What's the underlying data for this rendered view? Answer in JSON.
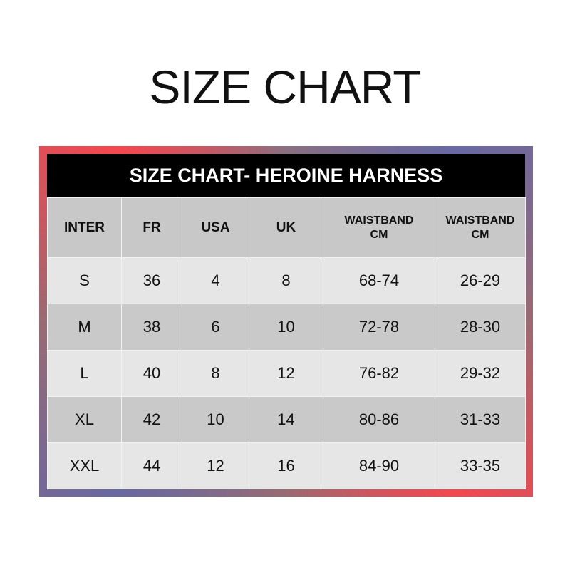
{
  "title": "SIZE CHART",
  "table": {
    "caption": "SIZE CHART- HEROINE HARNESS",
    "headers": [
      "INTER",
      "FR",
      "USA",
      "UK",
      "WAISTBAND CM",
      "WAISTBAND CM"
    ],
    "rows": [
      [
        "S",
        "36",
        "4",
        "8",
        "68-74",
        "26-29"
      ],
      [
        "M",
        "38",
        "6",
        "10",
        "72-78",
        "28-30"
      ],
      [
        "L",
        "40",
        "8",
        "12",
        "76-82",
        "29-32"
      ],
      [
        "XL",
        "42",
        "10",
        "14",
        "80-86",
        "31-33"
      ],
      [
        "XXL",
        "44",
        "12",
        "16",
        "84-90",
        "33-35"
      ]
    ]
  },
  "colors": {
    "frame_red": "#f4474f",
    "frame_blue": "#6868a2",
    "header_bg": "#000000",
    "row_light": "#e6e6e6",
    "row_dark": "#c9c9c9"
  }
}
